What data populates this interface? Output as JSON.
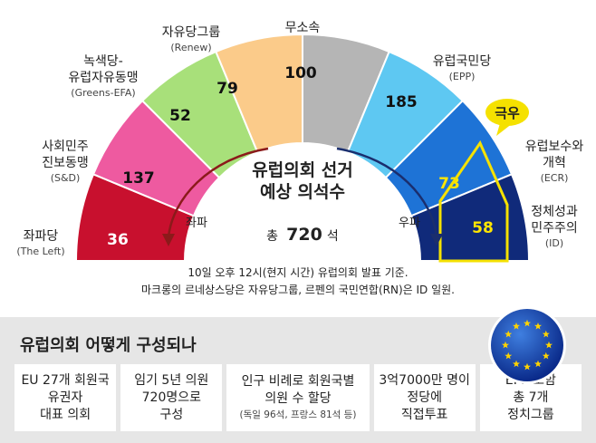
{
  "chart_data": {
    "type": "parliament-arc",
    "title_lines": [
      "유럽의회 선거",
      "예상 의석수"
    ],
    "total_label_prefix": "총",
    "total_value": "720",
    "total_label_suffix": "석",
    "left_label": "좌파",
    "right_label": "우파",
    "far_right_badge": "극우",
    "segments": [
      {
        "name_lines": [
          "좌파당"
        ],
        "en": "(The Left)",
        "value": 36,
        "color": "#c8102e",
        "text_color": "#ffffff"
      },
      {
        "name_lines": [
          "사회민주",
          "진보동맹"
        ],
        "en": "(S&D)",
        "value": 137,
        "color": "#ee5aa0",
        "text_color": "#111111"
      },
      {
        "name_lines": [
          "녹색당-",
          "유럽자유동맹"
        ],
        "en": "(Greens-EFA)",
        "value": 52,
        "color": "#a8e07a",
        "text_color": "#111111"
      },
      {
        "name_lines": [
          "자유당그룹"
        ],
        "en": "(Renew)",
        "value": 79,
        "color": "#fbcb8a",
        "text_color": "#111111"
      },
      {
        "name_lines": [
          "무소속"
        ],
        "en": "",
        "value": 100,
        "color": "#b5b5b5",
        "text_color": "#111111"
      },
      {
        "name_lines": [
          "유럽국민당"
        ],
        "en": "(EPP)",
        "value": 185,
        "color": "#5ec8f2",
        "text_color": "#111111"
      },
      {
        "name_lines": [
          "유럽보수와",
          "개혁"
        ],
        "en": "(ECR)",
        "value": 73,
        "color": "#1e73d6",
        "text_color": "#ffe600"
      },
      {
        "name_lines": [
          "정체성과",
          "민주주의"
        ],
        "en": "(ID)",
        "value": 58,
        "color": "#102a7a",
        "text_color": "#ffe600"
      }
    ],
    "notes": [
      "10일 오후 12시(현지 시간) 유럽의회 발표 기준.",
      "마크롱의 르네상스당은 자유당그룹, 르펜의 국민연합(RN)은 ID 일원."
    ]
  },
  "colors": {
    "highlight": "#f5e100",
    "arrow": "#8b1a1a",
    "arrow_right": "#1a2e6e"
  },
  "info": {
    "title": "유럽의회 어떻게 구성되나",
    "boxes": [
      {
        "lines": [
          "EU 27개 회원국",
          "유권자",
          "대표 의회"
        ],
        "small": ""
      },
      {
        "lines": [
          "임기 5년 의원",
          "720명으로",
          "구성"
        ],
        "small": ""
      },
      {
        "lines": [
          "인구 비례로 회원국별",
          "의원 수 할당"
        ],
        "small": "(독일 96석, 프랑스 81석 등)"
      },
      {
        "lines": [
          "3억7000만 명이",
          "정당에",
          "직접투표"
        ],
        "small": ""
      },
      {
        "lines": [
          "EPP 포함",
          "총 7개",
          "정치그룹"
        ],
        "small": ""
      }
    ]
  }
}
